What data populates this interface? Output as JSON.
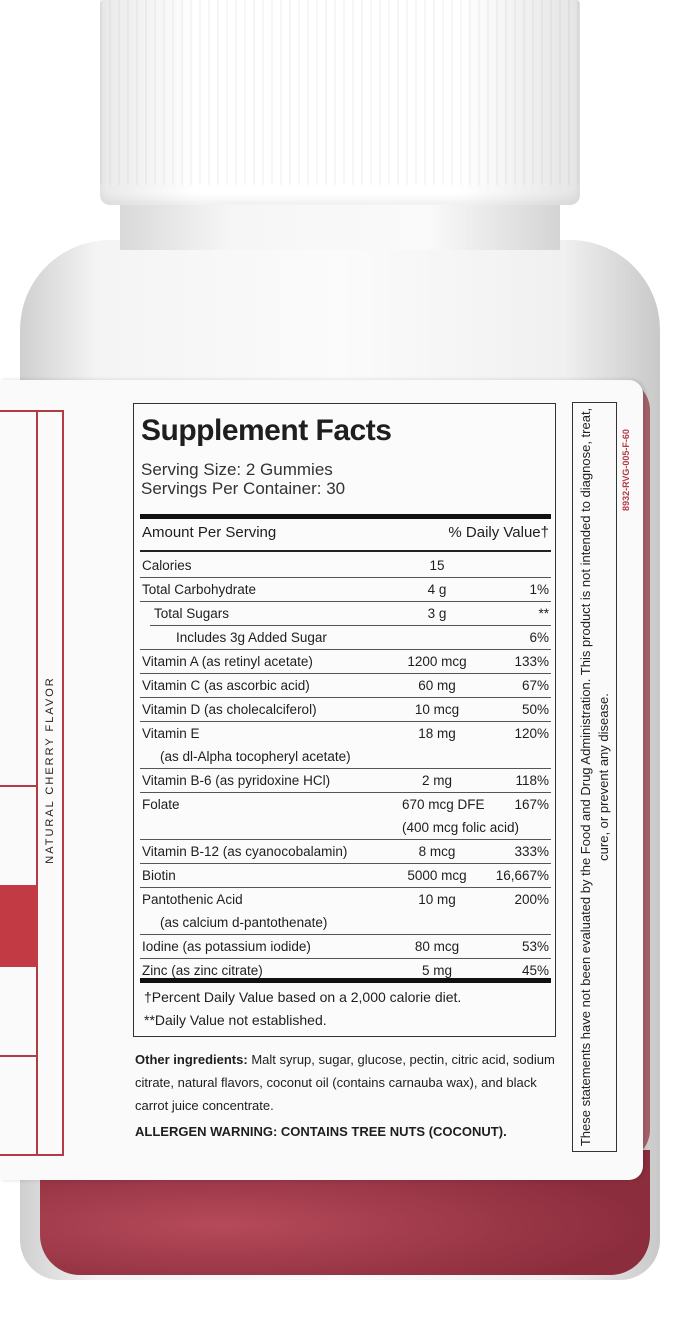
{
  "side_panel": {
    "flavor": "NATURAL CHERRY FLAVOR"
  },
  "facts": {
    "title": "Supplement Facts",
    "serving_size": "Serving Size: 2 Gummies",
    "servings_per_container": "Servings Per Container: 30",
    "header_amount": "Amount Per Serving",
    "header_dv": "% Daily Value†",
    "rows": [
      {
        "name": "Calories",
        "amount": "15",
        "dv": ""
      },
      {
        "name": "Total Carbohydrate",
        "amount": "4 g",
        "dv": "1%"
      },
      {
        "name": "Total Sugars",
        "amount": "3 g",
        "dv": "**"
      },
      {
        "name": "Includes 3g Added Sugar",
        "amount": "",
        "dv": "6%"
      },
      {
        "name": "Vitamin A (as retinyl acetate)",
        "amount": "1200 mcg",
        "dv": "133%"
      },
      {
        "name": "Vitamin C (as ascorbic acid)",
        "amount": "60 mg",
        "dv": "67%"
      },
      {
        "name": "Vitamin D (as cholecalciferol)",
        "amount": "10 mcg",
        "dv": "50%"
      },
      {
        "name": "Vitamin E",
        "name2": "(as dl-Alpha tocopheryl acetate)",
        "amount": "18 mg",
        "dv": "120%"
      },
      {
        "name": "Vitamin B-6 (as pyridoxine HCl)",
        "amount": "2 mg",
        "dv": "118%"
      },
      {
        "name": "Folate",
        "amount": "670 mcg DFE",
        "amount2": "(400 mcg folic acid)",
        "dv": "167%"
      },
      {
        "name": "Vitamin B-12 (as cyanocobalamin)",
        "amount": "8 mcg",
        "dv": "333%"
      },
      {
        "name": "Biotin",
        "amount": "5000 mcg",
        "dv": "16,667%"
      },
      {
        "name": "Pantothenic Acid",
        "name2": "(as calcium d-pantothenate)",
        "amount": "10 mg",
        "dv": "200%"
      },
      {
        "name": "Iodine (as potassium iodide)",
        "amount": "80 mcg",
        "dv": "53%"
      },
      {
        "name": "Zinc (as zinc citrate)",
        "amount": "5 mg",
        "dv": "45%"
      }
    ],
    "footnote_dv": "†Percent Daily Value based on a 2,000 calorie diet.",
    "footnote_na": "**Daily Value not established."
  },
  "other_ingredients": {
    "label": "Other ingredients:",
    "text": "Malt syrup, sugar, glucose, pectin, citric acid, sodium citrate, natural flavors, coconut oil (contains carnauba wax), and black carrot juice concentrate."
  },
  "allergen_warning": "ALLERGEN WARNING: CONTAINS TREE NUTS (COCONUT).",
  "disclaimer": "These statements have not been evaluated by the Food and Drug Administration. This product is not intended to diagnose, treat, cure, or prevent any disease.",
  "lot_code": "8932-RVG-005-F-60",
  "colors": {
    "accent_red": "#b43a44",
    "gummy": "#8c2d3d"
  }
}
